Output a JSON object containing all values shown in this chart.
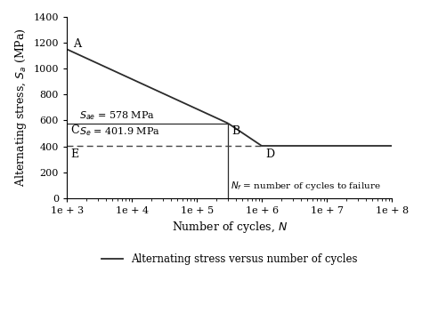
{
  "title": "",
  "xlabel": "Number of cycles, $N$",
  "ylabel": "Alternating stress, $S_a$ (MPa)",
  "xlim_log": [
    3,
    8
  ],
  "ylim": [
    0,
    1400
  ],
  "yticks": [
    0,
    200,
    400,
    600,
    800,
    1000,
    1200,
    1400
  ],
  "xtick_vals": [
    1000,
    10000,
    100000,
    1000000,
    10000000,
    100000000
  ],
  "xtick_labels": [
    "1e + 3",
    "1e + 4",
    "1e + 5",
    "1e + 6",
    "1e + 7",
    "1e + 8"
  ],
  "point_A": [
    1000,
    1150
  ],
  "point_B": [
    300000,
    578
  ],
  "point_C": [
    1000,
    578
  ],
  "point_D": [
    1000000,
    401.9
  ],
  "point_E": [
    1000,
    401.9
  ],
  "Sae": 578,
  "Se": 401.9,
  "line_color": "#2b2b2b",
  "dashed_color": "#444444",
  "legend_label": "Alternating stress versus number of cycles",
  "label_A": "A",
  "label_B": "B",
  "label_C": "C",
  "label_D": "D",
  "label_E": "E",
  "ann_Sae": "$S_{ae}$ = 578 MPa",
  "ann_Se": "$S_e$ = 401.9 MPa",
  "ann_Nf": "$N_f$ = number of cycles to failure",
  "background_color": "#ffffff"
}
